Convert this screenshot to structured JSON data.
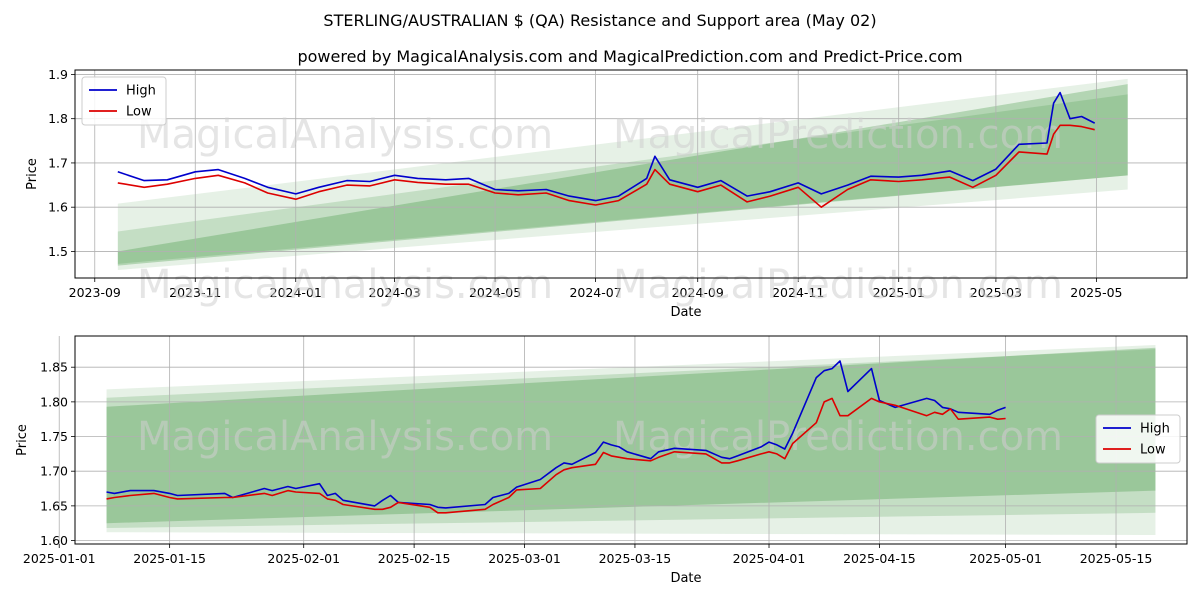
{
  "title": "STERLING/AUSTRALIAN $ (QA) Resistance and Support area (May 02)",
  "subtitle": "powered by MagicalAnalysis.com and MagicalPrediction.com and Predict-Price.com",
  "watermark": [
    "MagicalAnalysis.com",
    "MagicalPrediction.com"
  ],
  "colors": {
    "high": "#0000cc",
    "low": "#dd0000",
    "band": "#2e8b2e",
    "grid": "#b0b0b0"
  },
  "chart_data": [
    {
      "type": "line",
      "xlabel": "Date",
      "ylabel": "Price",
      "xlim": [
        "2023-08-20",
        "2025-06-25"
      ],
      "ylim": [
        1.44,
        1.91
      ],
      "x_ticks": [
        "2023-09",
        "2023-11",
        "2024-01",
        "2024-03",
        "2024-05",
        "2024-07",
        "2024-09",
        "2024-11",
        "2025-01",
        "2025-03",
        "2025-05"
      ],
      "x_tick_dates": [
        "2023-09-01",
        "2023-11-01",
        "2024-01-01",
        "2024-03-01",
        "2024-05-01",
        "2024-07-01",
        "2024-09-01",
        "2024-11-01",
        "2025-01-01",
        "2025-03-01",
        "2025-05-01"
      ],
      "y_ticks": [
        1.5,
        1.6,
        1.7,
        1.8,
        1.9
      ],
      "y_tick_labels": [
        "1.5",
        "1.6",
        "1.7",
        "1.8",
        "1.9"
      ],
      "legend": {
        "position": "upper-left",
        "entries": [
          "High",
          "Low"
        ]
      },
      "bands": [
        {
          "start": "2023-09-15",
          "end": "2025-05-20",
          "lower": [
            1.458,
            1.64
          ],
          "upper": [
            1.608,
            1.89
          ],
          "opacity": 0.12
        },
        {
          "start": "2023-09-15",
          "end": "2025-05-20",
          "lower": [
            1.472,
            1.672
          ],
          "upper": [
            1.545,
            1.855
          ],
          "opacity": 0.18
        },
        {
          "start": "2023-09-15",
          "end": "2025-05-20",
          "lower": [
            1.468,
            1.672
          ],
          "upper": [
            1.5,
            1.878
          ],
          "opacity": 0.28
        }
      ],
      "series": [
        {
          "name": "High",
          "x": [
            "2023-09-15",
            "2023-10-01",
            "2023-10-15",
            "2023-11-01",
            "2023-11-15",
            "2023-12-01",
            "2023-12-15",
            "2024-01-01",
            "2024-01-15",
            "2024-02-01",
            "2024-02-15",
            "2024-03-01",
            "2024-03-15",
            "2024-04-01",
            "2024-04-15",
            "2024-05-01",
            "2024-05-15",
            "2024-06-01",
            "2024-06-15",
            "2024-07-01",
            "2024-07-15",
            "2024-08-01",
            "2024-08-06",
            "2024-08-15",
            "2024-09-01",
            "2024-09-15",
            "2024-10-01",
            "2024-10-15",
            "2024-11-01",
            "2024-11-15",
            "2024-12-01",
            "2024-12-15",
            "2025-01-01",
            "2025-01-15",
            "2025-02-01",
            "2025-02-15",
            "2025-03-01",
            "2025-03-15",
            "2025-04-01",
            "2025-04-05",
            "2025-04-09",
            "2025-04-15",
            "2025-04-22",
            "2025-04-30"
          ],
          "values": [
            1.68,
            1.66,
            1.662,
            1.68,
            1.685,
            1.665,
            1.645,
            1.63,
            1.645,
            1.66,
            1.658,
            1.672,
            1.665,
            1.662,
            1.665,
            1.64,
            1.637,
            1.64,
            1.625,
            1.615,
            1.625,
            1.665,
            1.715,
            1.662,
            1.645,
            1.66,
            1.625,
            1.635,
            1.655,
            1.63,
            1.65,
            1.67,
            1.668,
            1.672,
            1.682,
            1.66,
            1.686,
            1.742,
            1.745,
            1.835,
            1.859,
            1.8,
            1.805,
            1.79
          ]
        },
        {
          "name": "Low",
          "x": [
            "2023-09-15",
            "2023-10-01",
            "2023-10-15",
            "2023-11-01",
            "2023-11-15",
            "2023-12-01",
            "2023-12-15",
            "2024-01-01",
            "2024-01-15",
            "2024-02-01",
            "2024-02-15",
            "2024-03-01",
            "2024-03-15",
            "2024-04-01",
            "2024-04-15",
            "2024-05-01",
            "2024-05-15",
            "2024-06-01",
            "2024-06-15",
            "2024-07-01",
            "2024-07-15",
            "2024-08-01",
            "2024-08-06",
            "2024-08-15",
            "2024-09-01",
            "2024-09-15",
            "2024-10-01",
            "2024-10-15",
            "2024-11-01",
            "2024-11-15",
            "2024-12-01",
            "2024-12-15",
            "2025-01-01",
            "2025-01-15",
            "2025-02-01",
            "2025-02-15",
            "2025-03-01",
            "2025-03-15",
            "2025-04-01",
            "2025-04-05",
            "2025-04-09",
            "2025-04-15",
            "2025-04-22",
            "2025-04-30"
          ],
          "values": [
            1.655,
            1.645,
            1.652,
            1.665,
            1.672,
            1.655,
            1.632,
            1.618,
            1.635,
            1.65,
            1.648,
            1.662,
            1.656,
            1.652,
            1.652,
            1.632,
            1.628,
            1.632,
            1.615,
            1.605,
            1.615,
            1.652,
            1.685,
            1.652,
            1.635,
            1.65,
            1.612,
            1.625,
            1.645,
            1.6,
            1.64,
            1.662,
            1.658,
            1.662,
            1.668,
            1.645,
            1.672,
            1.725,
            1.72,
            1.765,
            1.785,
            1.785,
            1.782,
            1.775
          ]
        }
      ]
    },
    {
      "type": "line",
      "xlabel": "Date",
      "ylabel": "Price",
      "xlim": [
        "2025-01-03",
        "2025-05-24"
      ],
      "ylim": [
        1.595,
        1.895
      ],
      "x_ticks": [
        "2025-01-01",
        "2025-01-15",
        "2025-02-01",
        "2025-02-15",
        "2025-03-01",
        "2025-03-15",
        "2025-04-01",
        "2025-04-15",
        "2025-05-01",
        "2025-05-15"
      ],
      "x_tick_dates": [
        "2025-01-01",
        "2025-01-15",
        "2025-02-01",
        "2025-02-15",
        "2025-03-01",
        "2025-03-15",
        "2025-04-01",
        "2025-04-15",
        "2025-05-01",
        "2025-05-15"
      ],
      "y_ticks": [
        1.6,
        1.65,
        1.7,
        1.75,
        1.8,
        1.85
      ],
      "y_tick_labels": [
        "1.60",
        "1.65",
        "1.70",
        "1.75",
        "1.80",
        "1.85"
      ],
      "legend": {
        "position": "center-right",
        "entries": [
          "High",
          "Low"
        ]
      },
      "bands": [
        {
          "start": "2025-01-07",
          "end": "2025-05-20",
          "lower": [
            1.612,
            1.608
          ],
          "upper": [
            1.818,
            1.882
          ],
          "opacity": 0.12
        },
        {
          "start": "2025-01-07",
          "end": "2025-05-20",
          "lower": [
            1.618,
            1.64
          ],
          "upper": [
            1.806,
            1.876
          ],
          "opacity": 0.18
        },
        {
          "start": "2025-01-07",
          "end": "2025-05-20",
          "lower": [
            1.625,
            1.672
          ],
          "upper": [
            1.793,
            1.878
          ],
          "opacity": 0.28
        }
      ],
      "series": [
        {
          "name": "High",
          "x": [
            "2025-01-07",
            "2025-01-08",
            "2025-01-10",
            "2025-01-13",
            "2025-01-15",
            "2025-01-16",
            "2025-01-22",
            "2025-01-23",
            "2025-01-27",
            "2025-01-28",
            "2025-01-30",
            "2025-01-31",
            "2025-02-03",
            "2025-02-04",
            "2025-02-05",
            "2025-02-06",
            "2025-02-10",
            "2025-02-11",
            "2025-02-12",
            "2025-02-13",
            "2025-02-17",
            "2025-02-18",
            "2025-02-19",
            "2025-02-24",
            "2025-02-25",
            "2025-02-27",
            "2025-02-28",
            "2025-03-03",
            "2025-03-05",
            "2025-03-06",
            "2025-03-07",
            "2025-03-10",
            "2025-03-11",
            "2025-03-12",
            "2025-03-13",
            "2025-03-14",
            "2025-03-17",
            "2025-03-18",
            "2025-03-20",
            "2025-03-24",
            "2025-03-26",
            "2025-03-27",
            "2025-03-28",
            "2025-03-31",
            "2025-04-01",
            "2025-04-02",
            "2025-04-03",
            "2025-04-04",
            "2025-04-07",
            "2025-04-08",
            "2025-04-09",
            "2025-04-10",
            "2025-04-11",
            "2025-04-14",
            "2025-04-15",
            "2025-04-17",
            "2025-04-21",
            "2025-04-22",
            "2025-04-23",
            "2025-04-24",
            "2025-04-25",
            "2025-04-29",
            "2025-04-30",
            "2025-05-01"
          ],
          "values": [
            1.67,
            1.668,
            1.672,
            1.672,
            1.668,
            1.665,
            1.668,
            1.662,
            1.675,
            1.672,
            1.678,
            1.675,
            1.682,
            1.665,
            1.668,
            1.658,
            1.65,
            1.658,
            1.665,
            1.655,
            1.652,
            1.648,
            1.647,
            1.652,
            1.662,
            1.668,
            1.677,
            1.688,
            1.705,
            1.712,
            1.71,
            1.727,
            1.742,
            1.738,
            1.735,
            1.728,
            1.718,
            1.728,
            1.733,
            1.73,
            1.72,
            1.718,
            1.722,
            1.735,
            1.742,
            1.738,
            1.732,
            1.755,
            1.835,
            1.845,
            1.848,
            1.859,
            1.815,
            1.848,
            1.802,
            1.792,
            1.805,
            1.802,
            1.792,
            1.79,
            1.785,
            1.782,
            1.788,
            1.792
          ]
        },
        {
          "name": "Low",
          "x": [
            "2025-01-07",
            "2025-01-08",
            "2025-01-10",
            "2025-01-13",
            "2025-01-15",
            "2025-01-16",
            "2025-01-22",
            "2025-01-23",
            "2025-01-27",
            "2025-01-28",
            "2025-01-30",
            "2025-01-31",
            "2025-02-03",
            "2025-02-04",
            "2025-02-05",
            "2025-02-06",
            "2025-02-10",
            "2025-02-11",
            "2025-02-12",
            "2025-02-13",
            "2025-02-17",
            "2025-02-18",
            "2025-02-19",
            "2025-02-24",
            "2025-02-25",
            "2025-02-27",
            "2025-02-28",
            "2025-03-03",
            "2025-03-05",
            "2025-03-06",
            "2025-03-07",
            "2025-03-10",
            "2025-03-11",
            "2025-03-12",
            "2025-03-13",
            "2025-03-14",
            "2025-03-17",
            "2025-03-18",
            "2025-03-20",
            "2025-03-24",
            "2025-03-26",
            "2025-03-27",
            "2025-03-28",
            "2025-03-31",
            "2025-04-01",
            "2025-04-02",
            "2025-04-03",
            "2025-04-04",
            "2025-04-07",
            "2025-04-08",
            "2025-04-09",
            "2025-04-10",
            "2025-04-11",
            "2025-04-14",
            "2025-04-15",
            "2025-04-17",
            "2025-04-21",
            "2025-04-22",
            "2025-04-23",
            "2025-04-24",
            "2025-04-25",
            "2025-04-29",
            "2025-04-30",
            "2025-05-01"
          ],
          "values": [
            1.66,
            1.662,
            1.665,
            1.668,
            1.662,
            1.66,
            1.662,
            1.662,
            1.668,
            1.665,
            1.672,
            1.67,
            1.668,
            1.66,
            1.658,
            1.652,
            1.645,
            1.645,
            1.648,
            1.655,
            1.648,
            1.64,
            1.64,
            1.645,
            1.652,
            1.662,
            1.673,
            1.675,
            1.695,
            1.702,
            1.705,
            1.71,
            1.727,
            1.722,
            1.72,
            1.718,
            1.715,
            1.72,
            1.728,
            1.725,
            1.712,
            1.712,
            1.715,
            1.725,
            1.728,
            1.725,
            1.718,
            1.74,
            1.77,
            1.8,
            1.805,
            1.78,
            1.78,
            1.805,
            1.8,
            1.795,
            1.78,
            1.785,
            1.782,
            1.79,
            1.775,
            1.778,
            1.775,
            1.776
          ]
        }
      ]
    }
  ]
}
